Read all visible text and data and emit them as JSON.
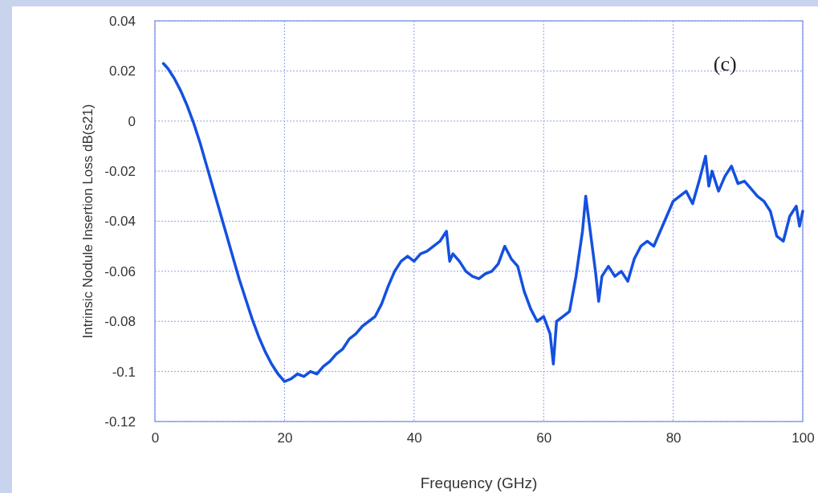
{
  "chart_data": {
    "type": "line",
    "xlabel": "Frequency (GHz)",
    "ylabel": "Intrinsic Nodule Insertion Loss dB(s21)",
    "annotations": [
      "(c)"
    ],
    "xlim": [
      0,
      100
    ],
    "xticks": [
      0,
      20,
      40,
      60,
      80,
      100
    ],
    "ylim": [
      -0.12,
      0.04
    ],
    "yticks": [
      -0.12,
      -0.1,
      -0.08,
      -0.06,
      -0.04,
      -0.02,
      0,
      0.02,
      0.04
    ],
    "grid": true,
    "marker": "none",
    "line_style": "solid",
    "series": [
      {
        "color": "#1450e0",
        "x": [
          1.3,
          2,
          3,
          4,
          5,
          6,
          7,
          8,
          9,
          10,
          11,
          12,
          13,
          14,
          15,
          16,
          17,
          18,
          19,
          20,
          21,
          22,
          23,
          24,
          25,
          26,
          27,
          28,
          29,
          30,
          31,
          32,
          33,
          34,
          35,
          36,
          37,
          38,
          39,
          40,
          41,
          42,
          43,
          44,
          45,
          45.5,
          46,
          47,
          48,
          49,
          50,
          51,
          52,
          53,
          54,
          55,
          56,
          57,
          58,
          59,
          60,
          61,
          61.5,
          62,
          63,
          64,
          65,
          66,
          66.5,
          67,
          68,
          68.5,
          69,
          70,
          71,
          72,
          73,
          74,
          75,
          76,
          77,
          78,
          79,
          80,
          81,
          82,
          83,
          84,
          85,
          85.5,
          86,
          87,
          88,
          89,
          90,
          91,
          92,
          93,
          94,
          95,
          96,
          97,
          98,
          99,
          99.5,
          100
        ],
        "values": [
          0.023,
          0.021,
          0.017,
          0.012,
          0.006,
          -0.001,
          -0.009,
          -0.018,
          -0.027,
          -0.036,
          -0.045,
          -0.054,
          -0.063,
          -0.071,
          -0.079,
          -0.086,
          -0.092,
          -0.097,
          -0.101,
          -0.104,
          -0.103,
          -0.101,
          -0.102,
          -0.1,
          -0.101,
          -0.098,
          -0.096,
          -0.093,
          -0.091,
          -0.087,
          -0.085,
          -0.082,
          -0.08,
          -0.078,
          -0.073,
          -0.066,
          -0.06,
          -0.056,
          -0.054,
          -0.056,
          -0.053,
          -0.052,
          -0.05,
          -0.048,
          -0.044,
          -0.056,
          -0.053,
          -0.056,
          -0.06,
          -0.062,
          -0.063,
          -0.061,
          -0.06,
          -0.057,
          -0.05,
          -0.055,
          -0.058,
          -0.068,
          -0.075,
          -0.08,
          -0.078,
          -0.085,
          -0.097,
          -0.08,
          -0.078,
          -0.076,
          -0.062,
          -0.044,
          -0.03,
          -0.04,
          -0.06,
          -0.072,
          -0.062,
          -0.058,
          -0.062,
          -0.06,
          -0.064,
          -0.055,
          -0.05,
          -0.048,
          -0.05,
          -0.044,
          -0.038,
          -0.032,
          -0.03,
          -0.028,
          -0.033,
          -0.024,
          -0.014,
          -0.026,
          -0.02,
          -0.028,
          -0.022,
          -0.018,
          -0.025,
          -0.024,
          -0.027,
          -0.03,
          -0.032,
          -0.036,
          -0.046,
          -0.048,
          -0.038,
          -0.034,
          -0.042,
          -0.036
        ]
      }
    ]
  }
}
